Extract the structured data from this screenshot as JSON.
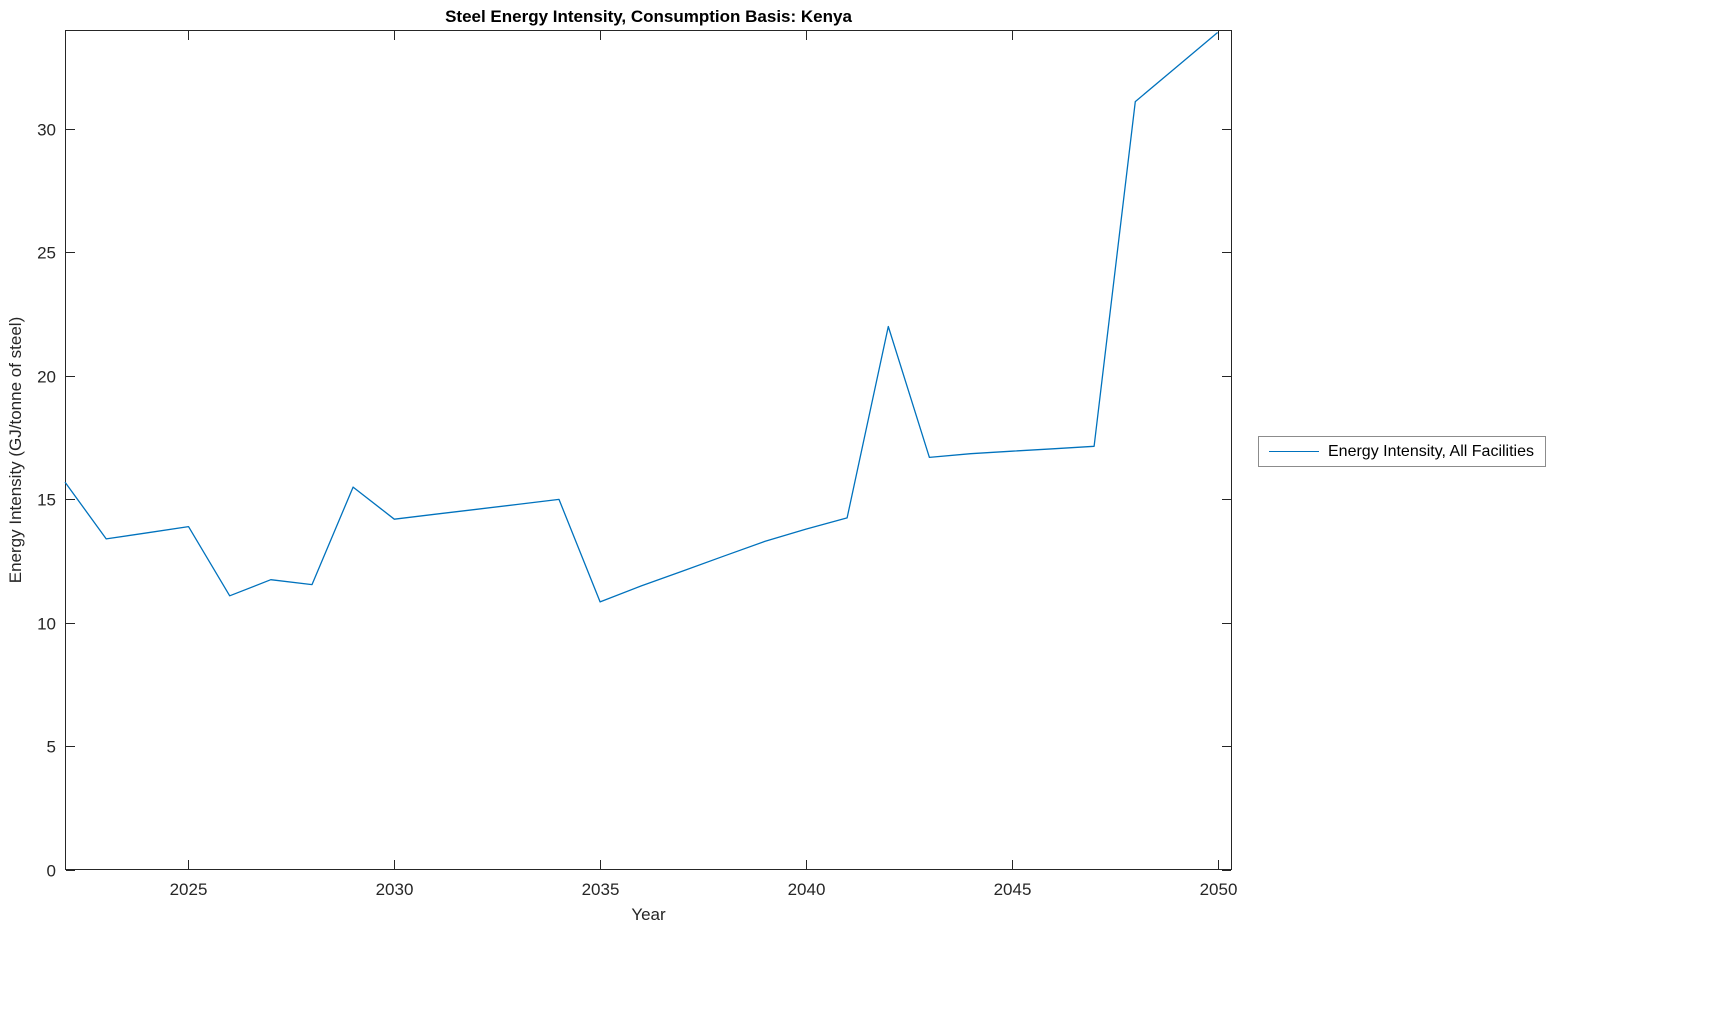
{
  "chart_data": {
    "type": "line",
    "title": "Steel Energy Intensity, Consumption Basis: Kenya",
    "xlabel": "Year",
    "ylabel": "Energy Intensity (GJ/tonne of steel)",
    "legend_entries": [
      "Energy Intensity, All Facilities"
    ],
    "legend_position": "outside-right",
    "grid": false,
    "line_color": "#0072BD",
    "axis_color": "#262626",
    "xlim": [
      2022,
      2050.35
    ],
    "ylim": [
      0,
      34
    ],
    "xticks": [
      2025,
      2030,
      2035,
      2040,
      2045,
      2050
    ],
    "yticks": [
      0,
      5,
      10,
      15,
      20,
      25,
      30
    ],
    "series": [
      {
        "name": "Energy Intensity, All Facilities",
        "x": [
          2022,
          2023,
          2024,
          2025,
          2026,
          2027,
          2028,
          2029,
          2030,
          2031,
          2032,
          2033,
          2034,
          2035,
          2036,
          2037,
          2038,
          2039,
          2040,
          2041,
          2042,
          2043,
          2044,
          2045,
          2046,
          2047,
          2048,
          2049,
          2050
        ],
        "y": [
          15.7,
          13.4,
          13.65,
          13.9,
          11.1,
          11.75,
          11.55,
          15.5,
          14.2,
          14.4,
          14.6,
          14.8,
          15.0,
          10.85,
          11.5,
          12.1,
          12.7,
          13.3,
          13.8,
          14.25,
          22.0,
          16.7,
          16.85,
          16.95,
          17.05,
          17.15,
          31.1,
          32.5,
          33.9
        ]
      }
    ]
  }
}
